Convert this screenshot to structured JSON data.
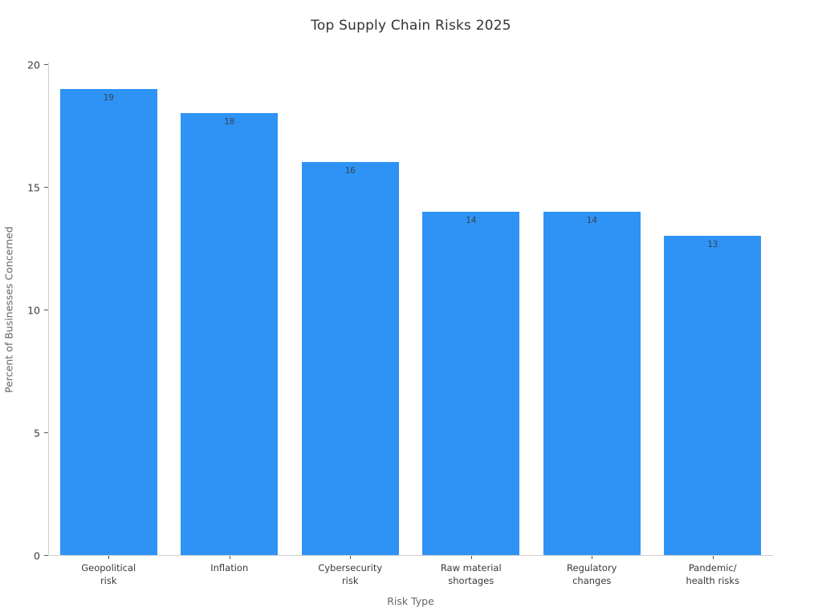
{
  "chart_data": {
    "type": "bar",
    "title": "Top Supply Chain Risks 2025",
    "xlabel": "Risk Type",
    "ylabel": "Percent of Businesses Concerned",
    "categories": [
      "Geopolitical\nrisk",
      "Inflation",
      "Cybersecurity\nrisk",
      "Raw material\nshortages",
      "Regulatory\nchanges",
      "Pandemic/\nhealth risks"
    ],
    "values": [
      19,
      18,
      16,
      14,
      14,
      13
    ],
    "bar_labels": [
      "19",
      "18",
      "16",
      "14",
      "14",
      "13"
    ],
    "ylim": [
      0,
      20
    ],
    "yticks": [
      0,
      5,
      10,
      15,
      20
    ],
    "grid": false,
    "legend": null,
    "orientation": "vertical",
    "colors": {
      "bar": "#2e93f5",
      "value_label": "#3b4450",
      "spine": "#cfcfcf",
      "tick": "#555555",
      "tick_label": "#3a3a3a",
      "axis_label": "#666666",
      "title": "#333333",
      "background": "#ffffff"
    }
  }
}
